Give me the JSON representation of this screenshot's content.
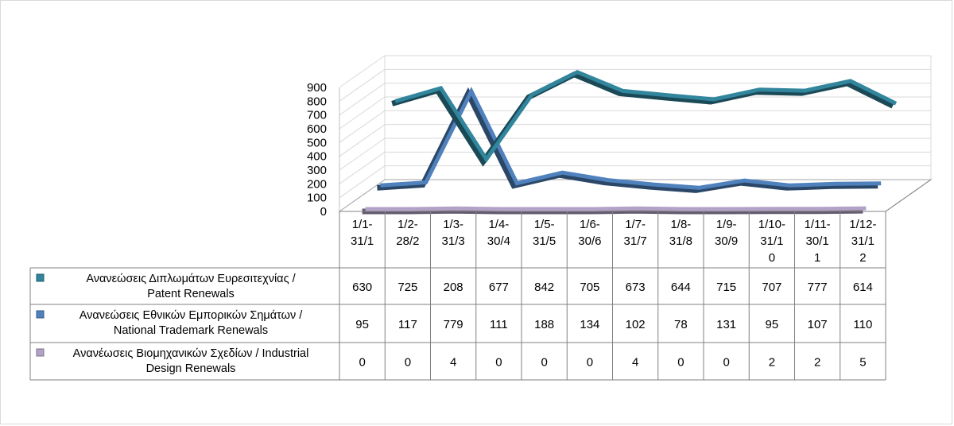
{
  "chart_data": {
    "type": "line",
    "title": "",
    "xlabel": "",
    "ylabel": "",
    "ylim": [
      0,
      900
    ],
    "y_ticks": [
      "0",
      "100",
      "200",
      "300",
      "400",
      "500",
      "600",
      "700",
      "800",
      "900"
    ],
    "grid": true,
    "legend": "data-table-left",
    "categories": [
      [
        "1/1-",
        "31/1"
      ],
      [
        "1/2-",
        "28/2"
      ],
      [
        "1/3-",
        "31/3"
      ],
      [
        "1/4-",
        "30/4"
      ],
      [
        "1/5-",
        "31/5"
      ],
      [
        "1/6-",
        "30/6"
      ],
      [
        "1/7-",
        "31/7"
      ],
      [
        "1/8-",
        "31/8"
      ],
      [
        "1/9-",
        "30/9"
      ],
      [
        "1/10-",
        "31/1",
        "0"
      ],
      [
        "1/11-",
        "30/1",
        "1"
      ],
      [
        "1/12-",
        "31/1",
        "2"
      ]
    ],
    "series": [
      {
        "name": [
          "Ανανεώσεις Διπλωμάτων Ευρεσιτεχνίας  /",
          "Patent Renewals"
        ],
        "color": "#31859c",
        "values": [
          630,
          725,
          208,
          677,
          842,
          705,
          673,
          644,
          715,
          707,
          777,
          614
        ]
      },
      {
        "name": [
          "Ανανεώσεις Εθνικών Εμπορικών Σημάτων /",
          "National Trademark Renewals"
        ],
        "color": "#4f81bd",
        "values": [
          95,
          117,
          779,
          111,
          188,
          134,
          102,
          78,
          131,
          95,
          107,
          110
        ]
      },
      {
        "name": [
          "Ανανέωσεις Βιομηχανικών Σχεδίων / Industrial",
          "Design Renewals"
        ],
        "color": "#b3a2c7",
        "values": [
          0,
          0,
          4,
          0,
          0,
          0,
          4,
          0,
          0,
          2,
          2,
          5
        ]
      }
    ]
  }
}
